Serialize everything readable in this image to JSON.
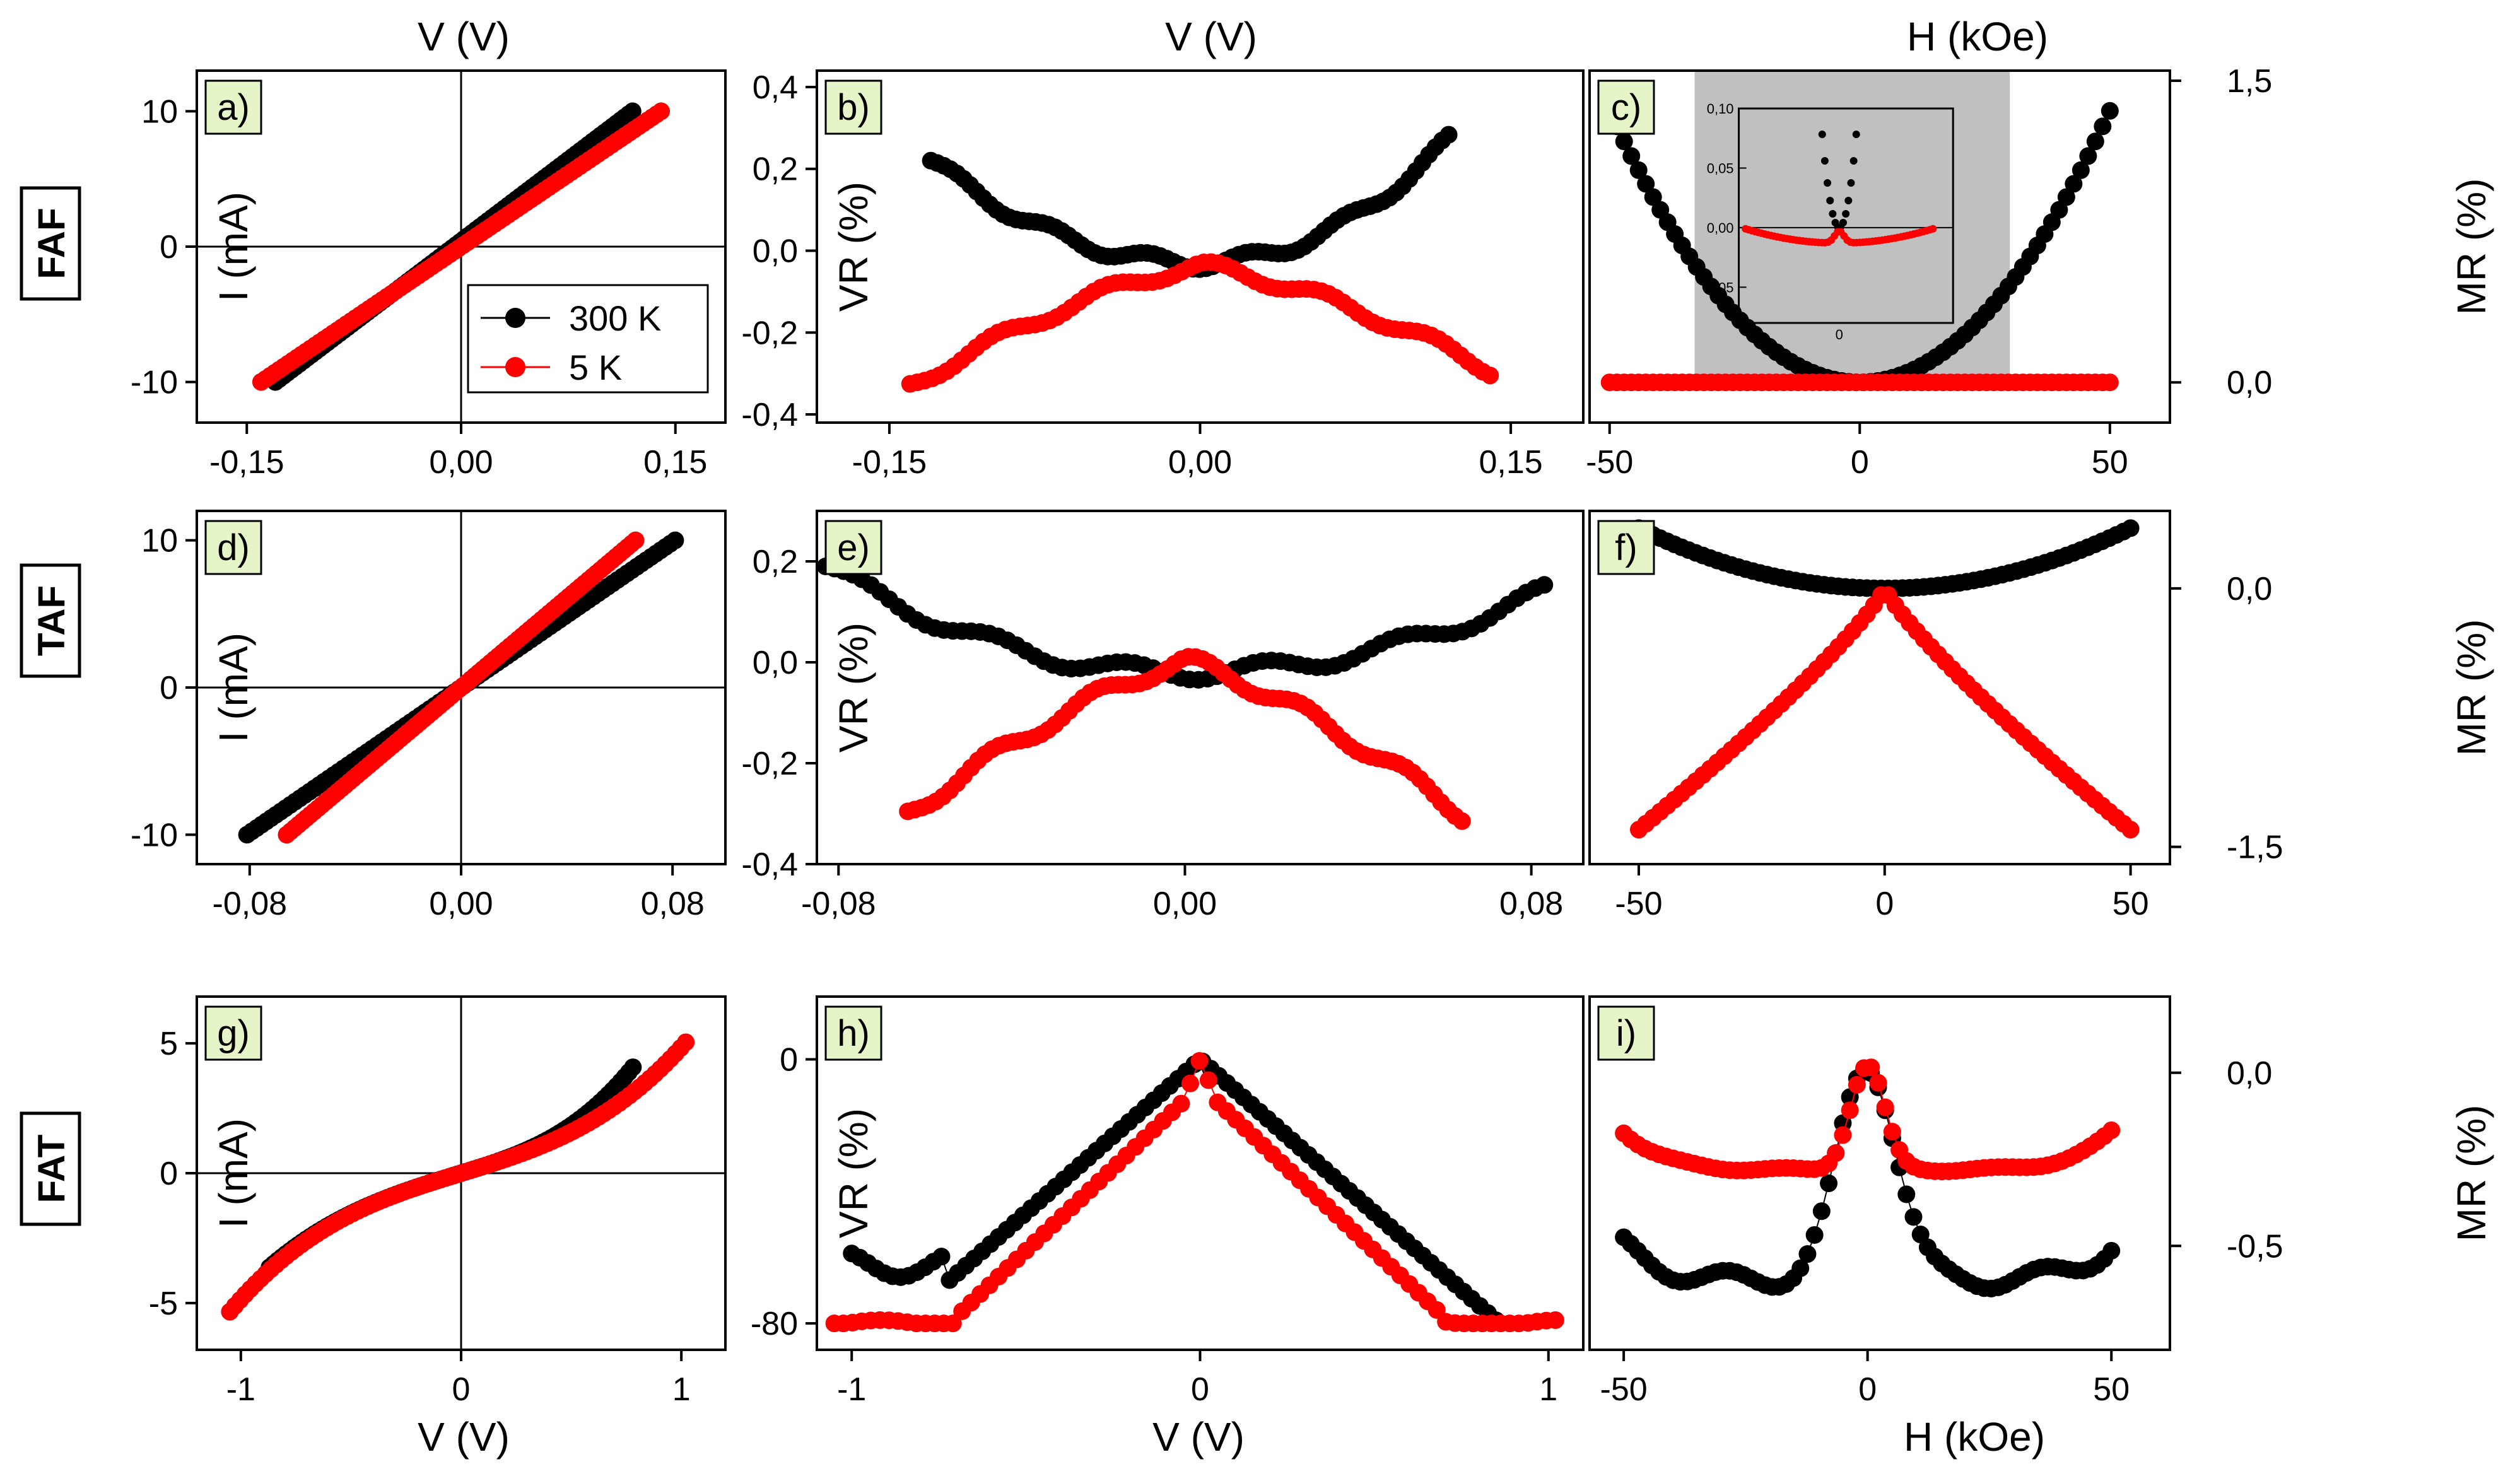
{
  "figure": {
    "top_titles": [
      "V (V)",
      "V (V)",
      "H (kOe)"
    ],
    "bottom_titles": [
      "V (V)",
      "V (V)",
      "H (kOe)"
    ],
    "row_labels": [
      "FAF",
      "TAF",
      "FAT"
    ],
    "ylabels": {
      "iv": "I (mA)",
      "vr": "VR (%)",
      "mr": "MR (%)"
    }
  },
  "colors": {
    "s300": "#000000",
    "s5": "#ff0000",
    "inset_bg": "#c0c0c0",
    "letter_bg": "#e6f5c8"
  },
  "chart_data": [
    {
      "id": "a",
      "label": "a)",
      "type": "scatter",
      "kind": "iv_linear",
      "xlim": [
        -0.185,
        0.185
      ],
      "ylim": [
        -13,
        13
      ],
      "xticks": [
        -0.15,
        0,
        0.15
      ],
      "xticklabels": [
        "-0,15",
        "0,00",
        "0,15"
      ],
      "yticks": [
        -10,
        0,
        10
      ],
      "yticklabels": [
        "-10",
        "0",
        "10"
      ],
      "ylabel": "I (mA)",
      "ylabel_side": "inside-left",
      "legend": {
        "entries": [
          "300 K",
          "5 K"
        ],
        "position": "lower-right"
      },
      "series": [
        {
          "name": "300 K",
          "xrange": [
            -0.13,
            0.12
          ],
          "yrange": [
            -10,
            10
          ]
        },
        {
          "name": "5 K",
          "xrange": [
            -0.14,
            0.14
          ],
          "yrange": [
            -10,
            10
          ]
        }
      ]
    },
    {
      "id": "b",
      "label": "b)",
      "type": "scatter",
      "kind": "vr",
      "xlim": [
        -0.185,
        0.185
      ],
      "ylim": [
        -0.42,
        0.44
      ],
      "xticks": [
        -0.15,
        0,
        0.15
      ],
      "xticklabels": [
        "-0,15",
        "0,00",
        "0,15"
      ],
      "yticks": [
        -0.4,
        -0.2,
        0,
        0.2,
        0.4
      ],
      "yticklabels": [
        "-0,4",
        "-0,2",
        "0,0",
        "0,2",
        "0,4"
      ],
      "ylabel": "VR (%)",
      "ylabel_side": "inside-left",
      "series": [
        {
          "name": "300 K",
          "xrange": [
            -0.13,
            0.12
          ],
          "center": -0.03,
          "left_end": 0.22,
          "right_end": 0.27,
          "power": 2
        },
        {
          "name": "5 K",
          "xrange": [
            -0.14,
            0.14
          ],
          "center": -0.04,
          "left_end": -0.33,
          "right_end": -0.29,
          "power": 1.4
        }
      ]
    },
    {
      "id": "c",
      "label": "c)",
      "type": "scatter",
      "kind": "mr_bowl",
      "xlim": [
        -54,
        62
      ],
      "ylim": [
        -0.2,
        1.55
      ],
      "xticks": [
        -50,
        0,
        50
      ],
      "xticklabels": [
        "-50",
        "0",
        "50"
      ],
      "yticks": [
        0,
        1.5
      ],
      "yticklabels": [
        "0,0",
        "1,5"
      ],
      "ylabel": "MR (%)",
      "ylabel_side": "right",
      "inset": {
        "xrange": [
          -33,
          30
        ],
        "yticklabels": [
          "0,10",
          "0,05",
          "0,00",
          "-0,05"
        ],
        "yticks": [
          0.1,
          0.05,
          0,
          -0.05
        ],
        "xticklabels": [
          "0"
        ],
        "xticks": [
          0
        ]
      },
      "series": [
        {
          "name": "300 K",
          "xrange": [
            -50,
            50
          ],
          "center": 0,
          "end": 1.35,
          "power": 2
        },
        {
          "name": "5 K",
          "xrange": [
            -50,
            50
          ],
          "center": 0,
          "end": 0,
          "power": 1
        }
      ]
    },
    {
      "id": "d",
      "label": "d)",
      "type": "scatter",
      "kind": "iv_linear",
      "xlim": [
        -0.1,
        0.1
      ],
      "ylim": [
        -12,
        12
      ],
      "xticks": [
        -0.08,
        0,
        0.08
      ],
      "xticklabels": [
        "-0,08",
        "0,00",
        "0,08"
      ],
      "yticks": [
        -10,
        0,
        10
      ],
      "yticklabels": [
        "-10",
        "0",
        "10"
      ],
      "ylabel": "I (mA)",
      "ylabel_side": "inside-left",
      "series": [
        {
          "name": "300 K",
          "xrange": [
            -0.081,
            0.081
          ],
          "yrange": [
            -10,
            10
          ]
        },
        {
          "name": "5 K",
          "xrange": [
            -0.066,
            0.066
          ],
          "yrange": [
            -10,
            10
          ]
        }
      ]
    },
    {
      "id": "e",
      "label": "e)",
      "type": "scatter",
      "kind": "vr",
      "xlim": [
        -0.085,
        0.092
      ],
      "ylim": [
        -0.4,
        0.3
      ],
      "xticks": [
        -0.08,
        0,
        0.08
      ],
      "xticklabels": [
        "-0,08",
        "0,00",
        "0,08"
      ],
      "yticks": [
        -0.4,
        -0.2,
        0,
        0.2
      ],
      "yticklabels": [
        "-0,4",
        "-0,2",
        "0,0",
        "0,2"
      ],
      "ylabel": "VR (%)",
      "ylabel_side": "inside-left",
      "series": [
        {
          "name": "300 K",
          "xrange": [
            -0.083,
            0.083
          ],
          "center": -0.02,
          "left_end": 0.19,
          "right_end": 0.14,
          "power": 2
        },
        {
          "name": "5 K",
          "xrange": [
            -0.064,
            0.064
          ],
          "center": 0.0,
          "left_end": -0.3,
          "right_end": -0.3,
          "power": 1.3
        }
      ]
    },
    {
      "id": "f",
      "label": "f)",
      "type": "scatter",
      "kind": "mr_cusp",
      "xlim": [
        -60,
        58
      ],
      "ylim": [
        -1.6,
        0.45
      ],
      "xticks": [
        -50,
        0,
        50
      ],
      "xticklabels": [
        "-50",
        "0",
        "50"
      ],
      "yticks": [
        -1.5,
        0
      ],
      "yticklabels": [
        "-1,5",
        "0,0"
      ],
      "ylabel": "MR (%)",
      "ylabel_side": "right",
      "series": [
        {
          "name": "300 K",
          "xrange": [
            -50,
            50
          ],
          "center": 0,
          "end": 0.35,
          "power": 2
        },
        {
          "name": "5 K",
          "xrange": [
            -50,
            50
          ],
          "center": 0,
          "end": -1.4,
          "power": 0.85
        }
      ]
    },
    {
      "id": "g",
      "label": "g)",
      "type": "scatter",
      "kind": "iv_cubic",
      "xlim": [
        -1.2,
        1.2
      ],
      "ylim": [
        -6.8,
        6.8
      ],
      "xticks": [
        -1,
        0,
        1
      ],
      "xticklabels": [
        "-1",
        "0",
        "1"
      ],
      "yticks": [
        -5,
        0,
        5
      ],
      "yticklabels": [
        "-5",
        "0",
        "5"
      ],
      "ylabel": "I (mA)",
      "ylabel_side": "inside-left",
      "series": [
        {
          "name": "300 K",
          "xrange": [
            -0.87,
            0.78
          ],
          "a": 2.3,
          "b": 4.8,
          "center": 0
        },
        {
          "name": "5 K",
          "xrange": [
            -1.05,
            1.02
          ],
          "a": 2.5,
          "b": 2.5,
          "center": 0
        }
      ]
    },
    {
      "id": "h",
      "label": "h)",
      "type": "scatter",
      "kind": "vr_peak",
      "xlim": [
        -1.1,
        1.1
      ],
      "ylim": [
        -88,
        19
      ],
      "xticks": [
        -1,
        0,
        1
      ],
      "xticklabels": [
        "-1",
        "0",
        "1"
      ],
      "yticks": [
        -80,
        0
      ],
      "yticklabels": [
        "-80",
        "0"
      ],
      "ylabel": "VR (%)",
      "ylabel_side": "inside-left",
      "series": [
        {
          "name": "300 K",
          "xrange": [
            -1.0,
            0.85
          ],
          "left_end": -60,
          "right_end": -80
        },
        {
          "name": "5 K",
          "xrange": [
            -1.05,
            1.02
          ],
          "left_end": -80,
          "right_end": -80,
          "shoulder": -70
        }
      ]
    },
    {
      "id": "i",
      "label": "i)",
      "type": "scatter",
      "kind": "mr_peak",
      "xlim": [
        -57,
        62
      ],
      "ylim": [
        -0.8,
        0.22
      ],
      "xticks": [
        -50,
        0,
        50
      ],
      "xticklabels": [
        "-50",
        "0",
        "50"
      ],
      "yticks": [
        -0.5,
        0
      ],
      "yticklabels": [
        "-0,5",
        "0,0"
      ],
      "ylabel": "MR (%)",
      "ylabel_side": "right",
      "series": [
        {
          "name": "300 K",
          "xrange": [
            -50,
            50
          ],
          "baseline": -0.6,
          "ends": -0.5
        },
        {
          "name": "5 K",
          "xrange": [
            -50,
            50
          ],
          "baseline": -0.28,
          "ends": -0.17
        }
      ]
    }
  ]
}
